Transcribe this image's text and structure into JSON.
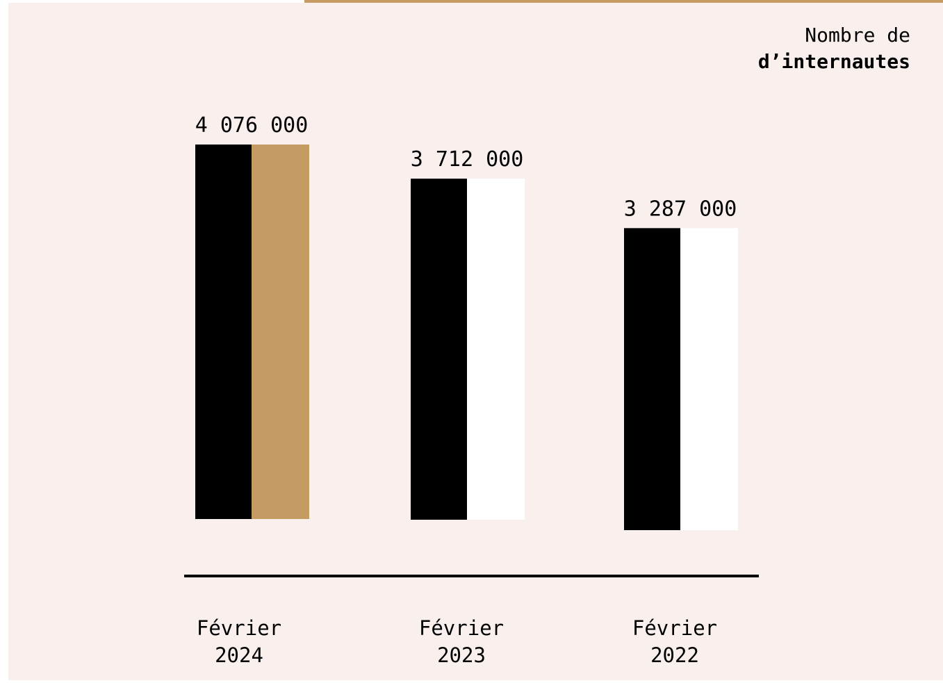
{
  "unit_label": {
    "line1": "Nombre de",
    "line2": "d’internautes"
  },
  "colors": {
    "background": "#f9f0ee",
    "primary": "#000000",
    "accent": "#c49b62",
    "secondary": "#ffffff",
    "axis": "#000000"
  },
  "chart_data": {
    "type": "bar",
    "categories": [
      [
        "Février",
        "2024"
      ],
      [
        "Février",
        "2023"
      ],
      [
        "Février",
        "2022"
      ]
    ],
    "values": [
      4076000,
      3712000,
      3287000
    ],
    "value_labels": [
      "4 076 000",
      "3 712 000",
      "3 287 000"
    ],
    "title": "",
    "xlabel": "",
    "ylabel": "Nombre de d’internautes",
    "grid": false,
    "legend": "none"
  }
}
